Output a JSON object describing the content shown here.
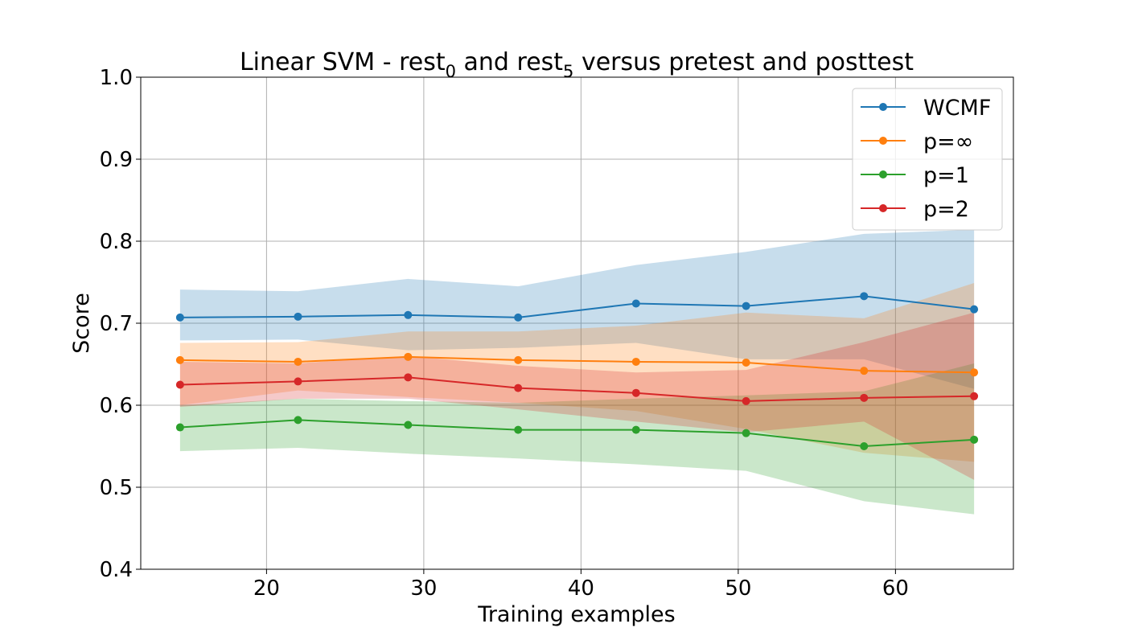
{
  "chart_data": {
    "type": "line",
    "title": {
      "prefix": "Linear SVM - rest",
      "sub1": "0",
      "middle": " and rest",
      "sub2": "5",
      "suffix": " versus pretest and posttest"
    },
    "xlabel": "Training examples",
    "ylabel": "Score",
    "xlim": [
      12,
      67.5
    ],
    "ylim": [
      0.4,
      1.0
    ],
    "xticks": [
      20,
      30,
      40,
      50,
      60
    ],
    "yticks": [
      0.4,
      0.5,
      0.6,
      0.7,
      0.8,
      0.9,
      1.0
    ],
    "grid": true,
    "legend_position": "top-right",
    "x": [
      14.5,
      22,
      29,
      36,
      43.5,
      50.5,
      58,
      65
    ],
    "series": [
      {
        "name": "WCMF",
        "color": "#1f77b4",
        "values": [
          0.707,
          0.708,
          0.71,
          0.707,
          0.724,
          0.721,
          0.733,
          0.717
        ],
        "band_upper": [
          0.741,
          0.739,
          0.754,
          0.745,
          0.771,
          0.787,
          0.809,
          0.814
        ],
        "band_lower": [
          0.679,
          0.68,
          0.667,
          0.67,
          0.676,
          0.656,
          0.656,
          0.62
        ]
      },
      {
        "name": "p=∞",
        "color": "#ff7f0e",
        "values": [
          0.655,
          0.653,
          0.659,
          0.655,
          0.653,
          0.652,
          0.642,
          0.64
        ],
        "band_upper": [
          0.676,
          0.677,
          0.69,
          0.69,
          0.697,
          0.713,
          0.706,
          0.749
        ],
        "band_lower": [
          0.6,
          0.618,
          0.61,
          0.603,
          0.593,
          0.571,
          0.542,
          0.531
        ]
      },
      {
        "name": "p=1",
        "color": "#2ca02c",
        "values": [
          0.573,
          0.582,
          0.576,
          0.57,
          0.57,
          0.566,
          0.55,
          0.558
        ],
        "band_upper": [
          0.6,
          0.608,
          0.605,
          0.603,
          0.608,
          0.612,
          0.617,
          0.651
        ],
        "band_lower": [
          0.544,
          0.548,
          0.541,
          0.535,
          0.528,
          0.52,
          0.483,
          0.467
        ]
      },
      {
        "name": "p=2",
        "color": "#d62728",
        "values": [
          0.625,
          0.629,
          0.634,
          0.621,
          0.615,
          0.605,
          0.609,
          0.611
        ],
        "band_upper": [
          0.653,
          0.651,
          0.66,
          0.648,
          0.64,
          0.643,
          0.677,
          0.713
        ],
        "band_lower": [
          0.598,
          0.608,
          0.608,
          0.595,
          0.58,
          0.567,
          0.58,
          0.509
        ]
      }
    ]
  }
}
